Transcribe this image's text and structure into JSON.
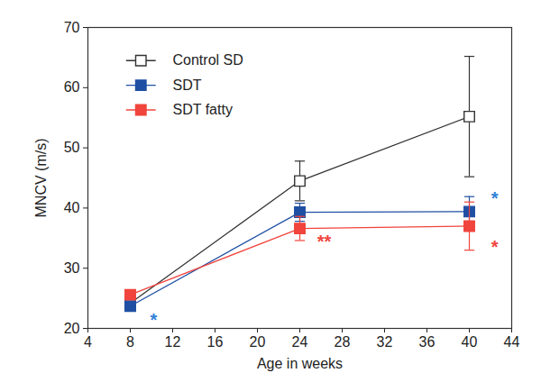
{
  "chart_data": {
    "type": "line",
    "x_label": "Age in weeks",
    "y_label": "MNCV (m/s)",
    "x": [
      8,
      24,
      40
    ],
    "xlim": [
      4,
      44
    ],
    "xticks": [
      4,
      8,
      12,
      16,
      20,
      24,
      28,
      32,
      36,
      40,
      44
    ],
    "ylim": [
      20,
      70
    ],
    "yticks": [
      20,
      30,
      40,
      50,
      60,
      70
    ],
    "legend": "top-left",
    "series": [
      {
        "name": "Control SD",
        "color": "#333333",
        "marker": "square-open",
        "values": [
          24.2,
          44.5,
          55.2
        ],
        "errors": [
          0.5,
          3.3,
          10.0
        ]
      },
      {
        "name": "SDT",
        "color": "#1f4fa3",
        "marker": "square",
        "values": [
          23.7,
          39.3,
          39.4
        ],
        "errors": [
          0.5,
          1.5,
          2.5
        ]
      },
      {
        "name": "SDT fatty",
        "color": "#f0443c",
        "marker": "square",
        "values": [
          25.6,
          36.6,
          37.0
        ],
        "errors": [
          0.8,
          2.0,
          4.0
        ]
      }
    ],
    "annotations": [
      {
        "text": "*",
        "x": 10.2,
        "y": 21.3,
        "color": "#2f7fd8"
      },
      {
        "text": "**",
        "x": 26.3,
        "y": 34.4,
        "color": "#f0443c"
      },
      {
        "text": "*",
        "x": 42.4,
        "y": 41.6,
        "color": "#2f7fd8"
      },
      {
        "text": "*",
        "x": 42.4,
        "y": 33.4,
        "color": "#f0443c"
      }
    ]
  }
}
